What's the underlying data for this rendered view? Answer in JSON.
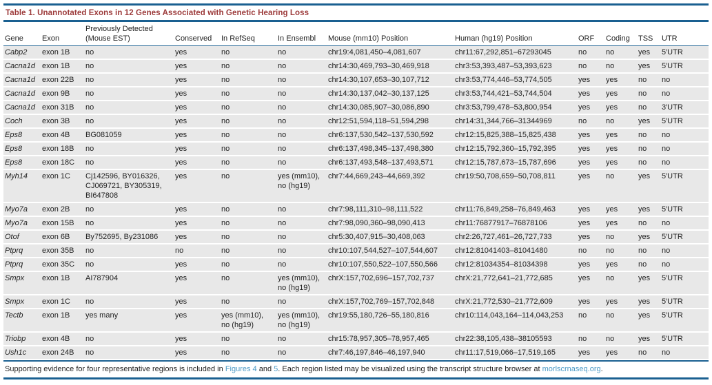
{
  "title": "Table 1.  Unannotated Exons in 12 Genes Associated with Genetic Hearing Loss",
  "header": {
    "gene": "Gene",
    "exon": "Exon",
    "prev": "Previously Detected\n(Mouse EST)",
    "conserved": "Conserved",
    "refseq": "In RefSeq",
    "ensembl": "In Ensembl",
    "mouse": "Mouse (mm10) Position",
    "human": "Human (hg19) Position",
    "orf": "ORF",
    "coding": "Coding",
    "tss": "TSS",
    "utr": "UTR"
  },
  "rows": [
    {
      "gene": "Cabp2",
      "exon": "exon 1B",
      "prev": "no",
      "conserved": "yes",
      "refseq": "no",
      "ensembl": "no",
      "mouse": "chr19:4,081,450–4,081,607",
      "human": "chr11:67,292,851–67293045",
      "orf": "no",
      "coding": "no",
      "tss": "yes",
      "utr": "5′UTR"
    },
    {
      "gene": "Cacna1d",
      "exon": "exon 1B",
      "prev": "no",
      "conserved": "yes",
      "refseq": "no",
      "ensembl": "no",
      "mouse": "chr14:30,469,793–30,469,918",
      "human": "chr3:53,393,487–53,393,623",
      "orf": "no",
      "coding": "no",
      "tss": "yes",
      "utr": "5′UTR"
    },
    {
      "gene": "Cacna1d",
      "exon": "exon 22B",
      "prev": "no",
      "conserved": "yes",
      "refseq": "no",
      "ensembl": "no",
      "mouse": "chr14:30,107,653–30,107,712",
      "human": "chr3:53,774,446–53,774,505",
      "orf": "yes",
      "coding": "yes",
      "tss": "no",
      "utr": "no"
    },
    {
      "gene": "Cacna1d",
      "exon": "exon 9B",
      "prev": "no",
      "conserved": "yes",
      "refseq": "no",
      "ensembl": "no",
      "mouse": "chr14:30,137,042–30,137,125",
      "human": "chr3:53,744,421–53,744,504",
      "orf": "yes",
      "coding": "yes",
      "tss": "no",
      "utr": "no"
    },
    {
      "gene": "Cacna1d",
      "exon": "exon 31B",
      "prev": "no",
      "conserved": "yes",
      "refseq": "no",
      "ensembl": "no",
      "mouse": "chr14:30,085,907–30,086,890",
      "human": "chr3:53,799,478–53,800,954",
      "orf": "yes",
      "coding": "yes",
      "tss": "no",
      "utr": "3′UTR"
    },
    {
      "gene": "Coch",
      "exon": "exon 3B",
      "prev": "no",
      "conserved": "yes",
      "refseq": "no",
      "ensembl": "no",
      "mouse": "chr12:51,594,118–51,594,298",
      "human": "chr14:31,344,766–31344969",
      "orf": "no",
      "coding": "no",
      "tss": "yes",
      "utr": "5′UTR"
    },
    {
      "gene": "Eps8",
      "exon": "exon 4B",
      "prev": "BG081059",
      "conserved": "yes",
      "refseq": "no",
      "ensembl": "no",
      "mouse": "chr6:137,530,542–137,530,592",
      "human": "chr12:15,825,388–15,825,438",
      "orf": "yes",
      "coding": "yes",
      "tss": "no",
      "utr": "no"
    },
    {
      "gene": "Eps8",
      "exon": "exon 18B",
      "prev": "no",
      "conserved": "yes",
      "refseq": "no",
      "ensembl": "no",
      "mouse": "chr6:137,498,345–137,498,380",
      "human": "chr12:15,792,360–15,792,395",
      "orf": "yes",
      "coding": "yes",
      "tss": "no",
      "utr": "no"
    },
    {
      "gene": "Eps8",
      "exon": "exon 18C",
      "prev": "no",
      "conserved": "yes",
      "refseq": "no",
      "ensembl": "no",
      "mouse": "chr6:137,493,548–137,493,571",
      "human": "chr12:15,787,673–15,787,696",
      "orf": "yes",
      "coding": "yes",
      "tss": "no",
      "utr": "no"
    },
    {
      "gene": "Myh14",
      "exon": "exon 1C",
      "prev": "Cj142596, BY016326, CJ069721, BY305319, BI647808",
      "conserved": "yes",
      "refseq": "no",
      "ensembl": "yes (mm10), no (hg19)",
      "mouse": "chr7:44,669,243–44,669,392",
      "human": "chr19:50,708,659–50,708,811",
      "orf": "yes",
      "coding": "no",
      "tss": "yes",
      "utr": "5′UTR"
    },
    {
      "gene": "Myo7a",
      "exon": "exon 2B",
      "prev": "no",
      "conserved": "yes",
      "refseq": "no",
      "ensembl": "no",
      "mouse": "chr7:98,111,310–98,111,522",
      "human": "chr11:76,849,258–76,849,463",
      "orf": "yes",
      "coding": "yes",
      "tss": "yes",
      "utr": "5′UTR"
    },
    {
      "gene": "Myo7a",
      "exon": "exon 15B",
      "prev": "no",
      "conserved": "yes",
      "refseq": "no",
      "ensembl": "no",
      "mouse": "chr7:98,090,360–98,090,413",
      "human": "chr11:76877917–76878106",
      "orf": "yes",
      "coding": "yes",
      "tss": "no",
      "utr": "no"
    },
    {
      "gene": "Otof",
      "exon": "exon 6B",
      "prev": "By752695, By231086",
      "conserved": "yes",
      "refseq": "no",
      "ensembl": "no",
      "mouse": "chr5:30,407,915–30,408,063",
      "human": "chr2:26,727,461–26,727,733",
      "orf": "yes",
      "coding": "no",
      "tss": "yes",
      "utr": "5′UTR"
    },
    {
      "gene": "Ptprq",
      "exon": "exon 35B",
      "prev": "no",
      "conserved": "no",
      "refseq": "no",
      "ensembl": "no",
      "mouse": "chr10:107,544,527–107,544,607",
      "human": "chr12:81041403–81041480",
      "orf": "no",
      "coding": "no",
      "tss": "no",
      "utr": "no"
    },
    {
      "gene": "Ptprq",
      "exon": "exon 35C",
      "prev": "no",
      "conserved": "yes",
      "refseq": "no",
      "ensembl": "no",
      "mouse": "chr10:107,550,522–107,550,566",
      "human": "chr12:81034354–81034398",
      "orf": "yes",
      "coding": "yes",
      "tss": "no",
      "utr": "no"
    },
    {
      "gene": "Smpx",
      "exon": "exon 1B",
      "prev": "AI787904",
      "conserved": "yes",
      "refseq": "no",
      "ensembl": "yes (mm10), no (hg19)",
      "mouse": "chrX:157,702,696–157,702,737",
      "human": "chrX:21,772,641–21,772,685",
      "orf": "yes",
      "coding": "no",
      "tss": "yes",
      "utr": "5′UTR"
    },
    {
      "gene": "Smpx",
      "exon": "exon 1C",
      "prev": "no",
      "conserved": "yes",
      "refseq": "no",
      "ensembl": "no",
      "mouse": "chrX:157,702,769–157,702,848",
      "human": "chrX:21,772,530–21,772,609",
      "orf": "yes",
      "coding": "yes",
      "tss": "yes",
      "utr": "5′UTR"
    },
    {
      "gene": "Tectb",
      "exon": "exon 1B",
      "prev": "yes many",
      "conserved": "yes",
      "refseq": "yes (mm10), no (hg19)",
      "ensembl": "yes (mm10), no (hg19)",
      "mouse": "chr19:55,180,726–55,180,816",
      "human": "chr10:114,043,164–114,043,253",
      "orf": "no",
      "coding": "no",
      "tss": "yes",
      "utr": "5′UTR"
    },
    {
      "gene": "Triobp",
      "exon": "exon 4B",
      "prev": "no",
      "conserved": "yes",
      "refseq": "no",
      "ensembl": "no",
      "mouse": "chr15:78,957,305–78,957,465",
      "human": "chr22:38,105,438–38105593",
      "orf": "no",
      "coding": "no",
      "tss": "yes",
      "utr": "5′UTR"
    },
    {
      "gene": "Ush1c",
      "exon": "exon 24B",
      "prev": "no",
      "conserved": "yes",
      "refseq": "no",
      "ensembl": "no",
      "mouse": "chr7:46,197,846–46,197,940",
      "human": "chr11:17,519,066–17,519,165",
      "orf": "yes",
      "coding": "yes",
      "tss": "no",
      "utr": "no"
    }
  ],
  "footnote": {
    "parts": [
      {
        "text": "Supporting evidence for four representative regions is included in ",
        "link": false
      },
      {
        "text": "Figures 4",
        "link": true
      },
      {
        "text": " and ",
        "link": false
      },
      {
        "text": "5",
        "link": true
      },
      {
        "text": ". Each region listed may be visualized using the transcript structure browser at ",
        "link": false
      },
      {
        "text": "morlscrnaseq.org",
        "link": true
      },
      {
        "text": ".",
        "link": false
      }
    ]
  },
  "colors": {
    "rule_blue": "#1a6091",
    "title_maroon": "#9c3a3a",
    "row_gray": "#e8e8e8",
    "link_blue": "#4d9bc7"
  }
}
